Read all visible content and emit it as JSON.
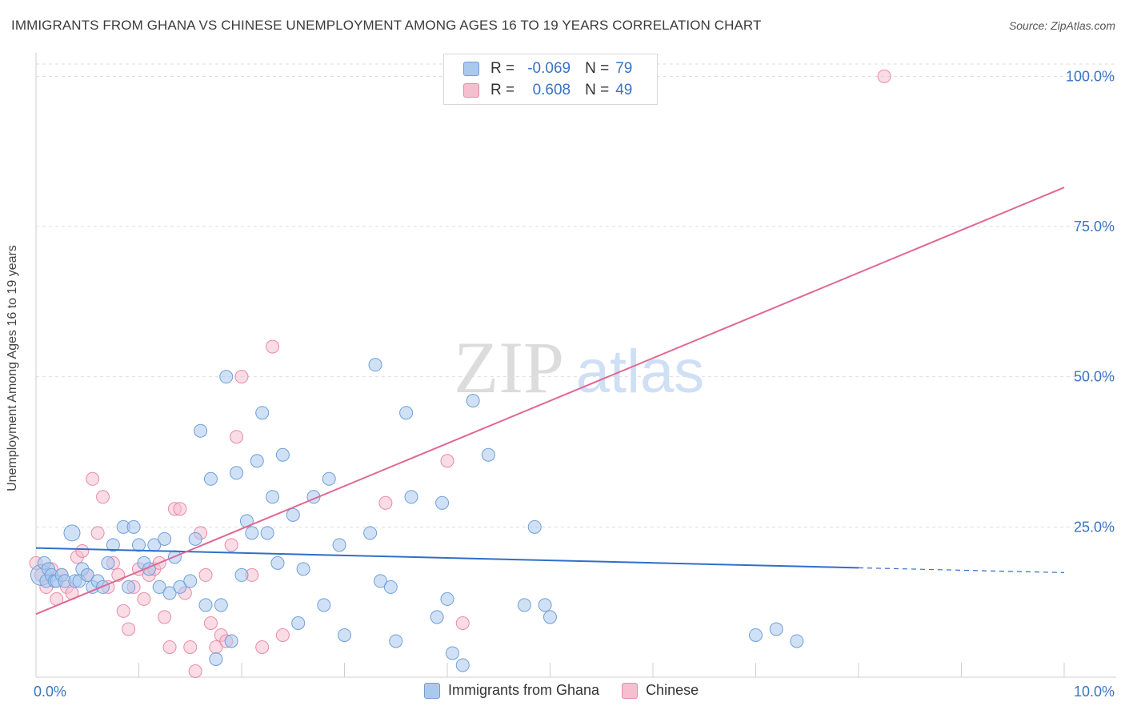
{
  "header": {
    "title": "IMMIGRANTS FROM GHANA VS CHINESE UNEMPLOYMENT AMONG AGES 16 TO 19 YEARS CORRELATION CHART",
    "source": "Source: ZipAtlas.com"
  },
  "watermark": {
    "zip": "ZIP",
    "atlas": "atlas"
  },
  "legend": {
    "rows": [
      {
        "r_label": "R =",
        "r_value": "-0.069",
        "n_label": "N =",
        "n_value": "79"
      },
      {
        "r_label": "R =",
        "r_value": "0.608",
        "n_label": "N =",
        "n_value": "49"
      }
    ]
  },
  "colors": {
    "ghana_fill": "#a9c9ef",
    "ghana_stroke": "#6e9fd9",
    "ghana_line": "#2f6fc9",
    "chinese_fill": "#f5bfd0",
    "chinese_stroke": "#e98aa8",
    "chinese_line": "#e06894",
    "axis_text": "#3a74c4",
    "grid": "#dddddd"
  },
  "chart_data": {
    "type": "scatter",
    "title": "IMMIGRANTS FROM GHANA VS CHINESE UNEMPLOYMENT AMONG AGES 16 TO 19 YEARS CORRELATION CHART",
    "xlabel": "",
    "ylabel": "Unemployment Among Ages 16 to 19 years",
    "xlim": [
      0,
      10
    ],
    "ylim": [
      0,
      100
    ],
    "x_tick_labels": [
      "0.0%",
      "10.0%"
    ],
    "y_tick_labels": [
      "25.0%",
      "50.0%",
      "75.0%",
      "100.0%"
    ],
    "y_ticks": [
      25,
      50,
      75,
      100
    ],
    "series": [
      {
        "name": "Immigrants from Ghana",
        "r": -0.069,
        "n": 79,
        "trend": {
          "x0": 0.0,
          "y0": 21.5,
          "x1": 8.0,
          "y1": 18.2,
          "x_dashed_end": 10.0,
          "y_dashed_end": 17.4
        },
        "points": [
          [
            0.05,
            17
          ],
          [
            0.08,
            19
          ],
          [
            0.1,
            16
          ],
          [
            0.12,
            18
          ],
          [
            0.15,
            17
          ],
          [
            0.18,
            16
          ],
          [
            0.2,
            16
          ],
          [
            0.25,
            17
          ],
          [
            0.28,
            16
          ],
          [
            0.35,
            24
          ],
          [
            0.38,
            16
          ],
          [
            0.42,
            16
          ],
          [
            0.45,
            18
          ],
          [
            0.5,
            17
          ],
          [
            0.55,
            15
          ],
          [
            0.6,
            16
          ],
          [
            0.65,
            15
          ],
          [
            0.7,
            19
          ],
          [
            0.75,
            22
          ],
          [
            0.85,
            25
          ],
          [
            0.9,
            15
          ],
          [
            0.95,
            25
          ],
          [
            1.0,
            22
          ],
          [
            1.05,
            19
          ],
          [
            1.1,
            18
          ],
          [
            1.15,
            22
          ],
          [
            1.2,
            15
          ],
          [
            1.25,
            23
          ],
          [
            1.3,
            14
          ],
          [
            1.35,
            20
          ],
          [
            1.4,
            15
          ],
          [
            1.5,
            16
          ],
          [
            1.55,
            23
          ],
          [
            1.6,
            41
          ],
          [
            1.65,
            12
          ],
          [
            1.7,
            33
          ],
          [
            1.75,
            3
          ],
          [
            1.8,
            12
          ],
          [
            1.85,
            50
          ],
          [
            1.9,
            6
          ],
          [
            1.95,
            34
          ],
          [
            2.0,
            17
          ],
          [
            2.05,
            26
          ],
          [
            2.1,
            24
          ],
          [
            2.15,
            36
          ],
          [
            2.2,
            44
          ],
          [
            2.25,
            24
          ],
          [
            2.3,
            30
          ],
          [
            2.35,
            19
          ],
          [
            2.4,
            37
          ],
          [
            2.5,
            27
          ],
          [
            2.55,
            9
          ],
          [
            2.6,
            18
          ],
          [
            2.7,
            30
          ],
          [
            2.8,
            12
          ],
          [
            2.85,
            33
          ],
          [
            2.95,
            22
          ],
          [
            3.0,
            7
          ],
          [
            3.25,
            24
          ],
          [
            3.3,
            52
          ],
          [
            3.35,
            16
          ],
          [
            3.45,
            15
          ],
          [
            3.5,
            6
          ],
          [
            3.6,
            44
          ],
          [
            3.65,
            30
          ],
          [
            3.9,
            10
          ],
          [
            3.95,
            29
          ],
          [
            4.0,
            13
          ],
          [
            4.05,
            4
          ],
          [
            4.15,
            2
          ],
          [
            4.25,
            46
          ],
          [
            4.4,
            37
          ],
          [
            4.75,
            12
          ],
          [
            4.85,
            25
          ],
          [
            4.95,
            12
          ],
          [
            5.0,
            10
          ],
          [
            7.0,
            7
          ],
          [
            7.2,
            8
          ],
          [
            7.4,
            6
          ]
        ]
      },
      {
        "name": "Chinese",
        "r": 0.608,
        "n": 49,
        "trend": {
          "x0": 0.0,
          "y0": 10.5,
          "x1": 10.0,
          "y1": 81.5
        },
        "points": [
          [
            0.05,
            17
          ],
          [
            0.1,
            15
          ],
          [
            0.15,
            18
          ],
          [
            0.2,
            13
          ],
          [
            0.25,
            17
          ],
          [
            0.3,
            15
          ],
          [
            0.35,
            14
          ],
          [
            0.4,
            20
          ],
          [
            0.45,
            21
          ],
          [
            0.5,
            17
          ],
          [
            0.55,
            33
          ],
          [
            0.6,
            24
          ],
          [
            0.65,
            30
          ],
          [
            0.7,
            15
          ],
          [
            0.75,
            19
          ],
          [
            0.8,
            17
          ],
          [
            0.85,
            11
          ],
          [
            0.9,
            8
          ],
          [
            0.95,
            15
          ],
          [
            1.0,
            18
          ],
          [
            1.05,
            13
          ],
          [
            1.1,
            17
          ],
          [
            1.15,
            18
          ],
          [
            1.2,
            19
          ],
          [
            1.25,
            10
          ],
          [
            1.3,
            5
          ],
          [
            1.35,
            28
          ],
          [
            1.4,
            28
          ],
          [
            1.45,
            14
          ],
          [
            1.5,
            5
          ],
          [
            1.55,
            1
          ],
          [
            1.6,
            24
          ],
          [
            1.65,
            17
          ],
          [
            1.7,
            9
          ],
          [
            1.75,
            5
          ],
          [
            1.8,
            7
          ],
          [
            1.85,
            6
          ],
          [
            1.9,
            22
          ],
          [
            1.95,
            40
          ],
          [
            2.0,
            50
          ],
          [
            2.1,
            17
          ],
          [
            2.2,
            5
          ],
          [
            2.3,
            55
          ],
          [
            2.4,
            7
          ],
          [
            3.4,
            29
          ],
          [
            4.0,
            36
          ],
          [
            4.15,
            9
          ],
          [
            8.25,
            100
          ],
          [
            0.0,
            19
          ]
        ]
      }
    ]
  },
  "bottom_legend": {
    "ghana_label": "Immigrants from Ghana",
    "chinese_label": "Chinese"
  },
  "x_axis": {
    "min_label": "0.0%",
    "max_label": "10.0%"
  }
}
